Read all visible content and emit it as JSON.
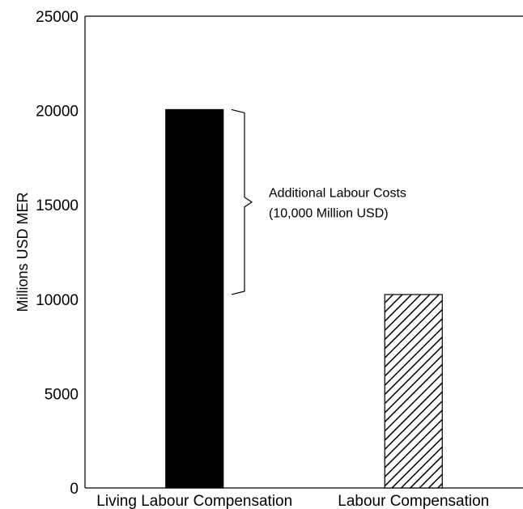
{
  "chart_data": {
    "type": "bar",
    "title": "",
    "xlabel": "",
    "ylabel": "Millions USD MER",
    "categories": [
      "Living Labour Compensation",
      "Labour Compensation"
    ],
    "values": [
      20050,
      10250
    ],
    "bar_styles": [
      "solid-black",
      "diagonal-hatch"
    ],
    "ylim": [
      0,
      25000
    ],
    "yticks": [
      "0",
      "5000",
      "10000",
      "15000",
      "20000",
      "25000"
    ],
    "grid": false,
    "legend": "none",
    "annotation": {
      "lines": [
        "Additional Labour Costs",
        "(10,000 Million USD)"
      ],
      "bracket_from": 10250,
      "bracket_to": 20050
    }
  }
}
